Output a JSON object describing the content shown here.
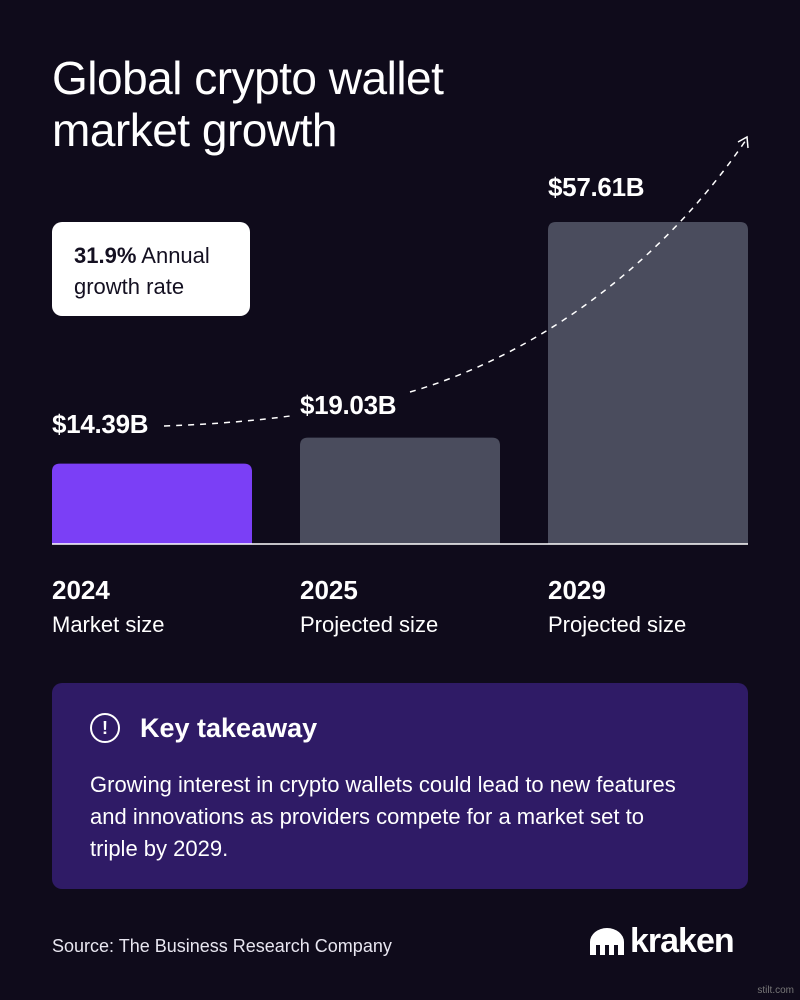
{
  "title_lines": [
    "Global crypto wallet",
    "market growth"
  ],
  "badge": {
    "rate": "31.9%",
    "line1_rest": " Annual",
    "line2": "growth rate"
  },
  "chart_data": {
    "type": "bar",
    "title": "Global crypto wallet market growth",
    "categories": [
      "2024",
      "2025",
      "2029"
    ],
    "sublabels": [
      "Market size",
      "Projected size",
      "Projected size"
    ],
    "values": [
      14.39,
      19.03,
      57.61
    ],
    "value_labels": [
      "$14.39B",
      "$19.03B",
      "$57.61B"
    ],
    "unit": "B USD",
    "annotation": "31.9% Annual growth rate",
    "ylim": [
      0,
      57.61
    ],
    "grid": false,
    "colors": [
      "#7b3ff6",
      "#4a4c5d",
      "#4a4c5d"
    ],
    "trend_line": "dashed"
  },
  "takeaway": {
    "title": "Key takeaway",
    "icon": "exclamation-circle-icon",
    "body": "Growing interest in crypto wallets could lead to new features and innovations as providers compete for a market set to triple by 2029."
  },
  "source": "Source: The Business Research Company",
  "logo": {
    "word": "kraken",
    "icon": "kraken-logo-icon"
  },
  "watermark": "stilt.com"
}
